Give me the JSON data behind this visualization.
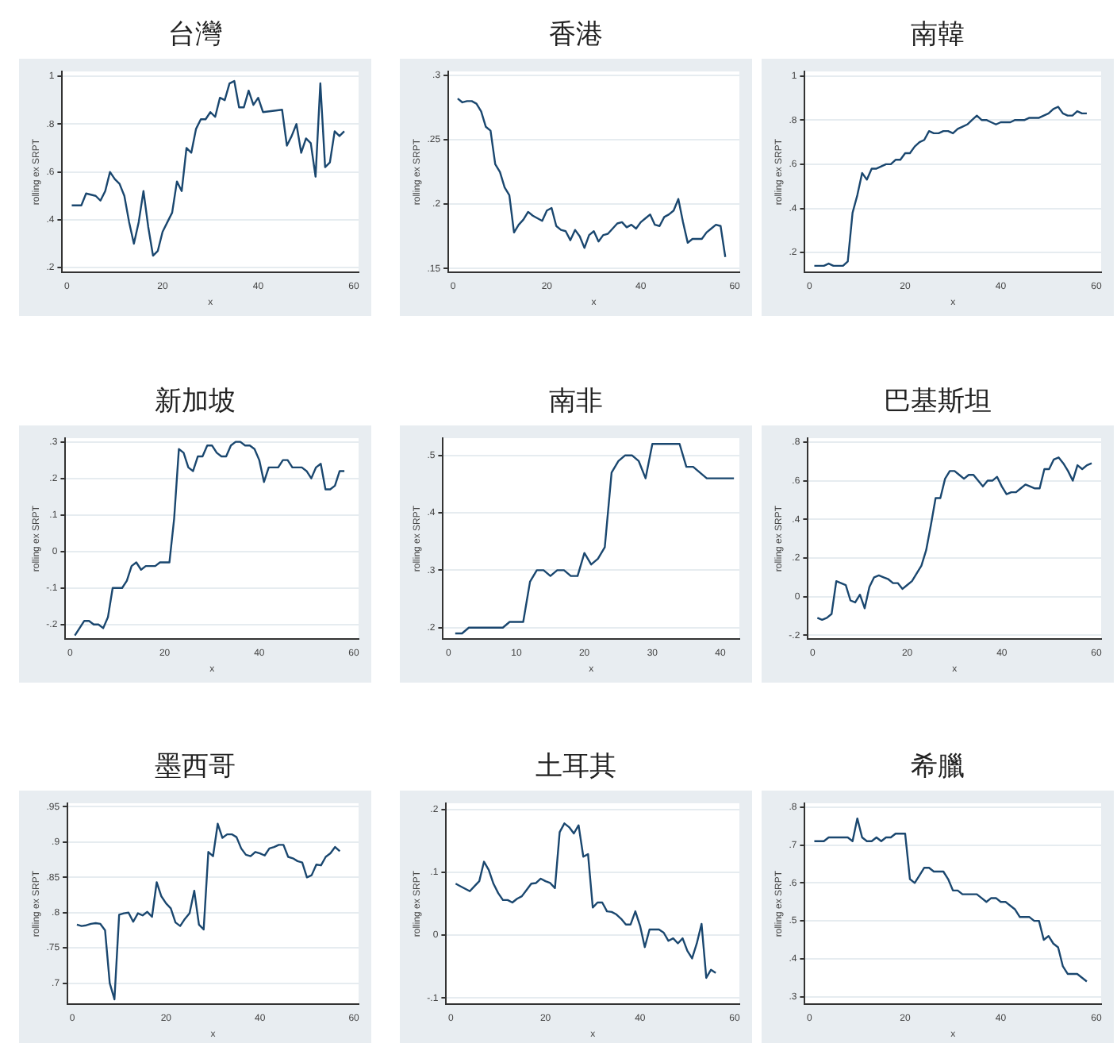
{
  "chart_data": [
    {
      "type": "line",
      "title": "台灣",
      "xlabel": "x",
      "ylabel": "rolling ex SRPT",
      "grid": "y",
      "xlim": [
        -1,
        61
      ],
      "xticks": [
        0,
        20,
        40,
        60
      ],
      "ylim": [
        0.18,
        1.02
      ],
      "yticks": [
        {
          "value": 0.2,
          "label": ".2"
        },
        {
          "value": 0.4,
          "label": ".4"
        },
        {
          "value": 0.6,
          "label": ".6"
        },
        {
          "value": 0.8,
          "label": ".8"
        },
        {
          "value": 1,
          "label": "1"
        }
      ],
      "x": [
        1,
        2,
        3,
        4,
        6,
        7,
        8,
        9,
        10,
        11,
        12,
        13,
        14,
        15,
        16,
        17,
        18,
        19,
        20,
        21,
        22,
        23,
        24,
        25,
        26,
        27,
        28,
        29,
        30,
        31,
        32,
        33,
        34,
        35,
        36,
        37,
        38,
        39,
        40,
        41,
        45,
        46,
        47,
        48,
        49,
        50,
        51,
        52,
        53,
        54,
        55,
        56,
        57,
        58
      ],
      "series": [
        {
          "color": "#1a476f",
          "values": [
            0.46,
            0.46,
            0.46,
            0.51,
            0.5,
            0.48,
            0.52,
            0.6,
            0.57,
            0.55,
            0.5,
            0.39,
            0.3,
            0.39,
            0.52,
            0.37,
            0.25,
            0.27,
            0.35,
            0.39,
            0.43,
            0.56,
            0.52,
            0.7,
            0.68,
            0.78,
            0.82,
            0.82,
            0.85,
            0.83,
            0.91,
            0.9,
            0.97,
            0.98,
            0.87,
            0.87,
            0.94,
            0.88,
            0.91,
            0.85,
            0.86,
            0.71,
            0.75,
            0.8,
            0.68,
            0.74,
            0.72,
            0.58,
            0.97,
            0.62,
            0.64,
            0.77,
            0.75,
            0.77
          ]
        }
      ]
    },
    {
      "type": "line",
      "title": "香港",
      "xlabel": "x",
      "ylabel": "rolling ex SRPT",
      "grid": "y",
      "xlim": [
        -1,
        61
      ],
      "xticks": [
        0,
        20,
        40,
        60
      ],
      "ylim": [
        0.147,
        0.303
      ],
      "yticks": [
        {
          "value": 0.15,
          "label": ".15"
        },
        {
          "value": 0.2,
          "label": ".2"
        },
        {
          "value": 0.25,
          "label": ".25"
        },
        {
          "value": 0.3,
          "label": ".3"
        }
      ],
      "x": [
        1,
        2,
        3,
        4,
        5,
        6,
        7,
        8,
        9,
        10,
        11,
        12,
        13,
        14,
        15,
        16,
        17,
        18,
        19,
        20,
        21,
        22,
        23,
        24,
        25,
        26,
        27,
        28,
        29,
        30,
        31,
        32,
        33,
        34,
        35,
        36,
        37,
        38,
        39,
        40,
        41,
        42,
        43,
        44,
        45,
        46,
        47,
        48,
        49,
        50,
        51,
        53,
        54,
        55,
        56,
        57,
        58
      ],
      "series": [
        {
          "color": "#1a476f",
          "values": [
            0.282,
            0.279,
            0.28,
            0.28,
            0.278,
            0.272,
            0.26,
            0.257,
            0.231,
            0.225,
            0.213,
            0.207,
            0.178,
            0.184,
            0.188,
            0.194,
            0.191,
            0.189,
            0.187,
            0.195,
            0.197,
            0.183,
            0.18,
            0.179,
            0.172,
            0.18,
            0.175,
            0.166,
            0.176,
            0.179,
            0.171,
            0.176,
            0.177,
            0.181,
            0.185,
            0.186,
            0.182,
            0.184,
            0.181,
            0.186,
            0.189,
            0.192,
            0.184,
            0.183,
            0.19,
            0.192,
            0.195,
            0.204,
            0.186,
            0.17,
            0.173,
            0.173,
            0.178,
            0.181,
            0.184,
            0.183,
            0.159
          ]
        }
      ]
    },
    {
      "type": "line",
      "title": "南韓",
      "xlabel": "x",
      "ylabel": "rolling ex SRPT",
      "grid": "y",
      "xlim": [
        -1,
        61
      ],
      "xticks": [
        0,
        20,
        40,
        60
      ],
      "ylim": [
        0.11,
        1.02
      ],
      "yticks": [
        {
          "value": 0.2,
          "label": ".2"
        },
        {
          "value": 0.4,
          "label": ".4"
        },
        {
          "value": 0.6,
          "label": ".6"
        },
        {
          "value": 0.8,
          "label": ".8"
        },
        {
          "value": 1,
          "label": "1"
        }
      ],
      "x": [
        1,
        2,
        3,
        4,
        5,
        6,
        7,
        8,
        9,
        10,
        11,
        12,
        13,
        14,
        15,
        16,
        17,
        18,
        19,
        20,
        21,
        22,
        23,
        24,
        25,
        26,
        27,
        28,
        29,
        30,
        31,
        32,
        33,
        34,
        35,
        36,
        37,
        38,
        39,
        40,
        41,
        42,
        43,
        44,
        45,
        46,
        47,
        48,
        49,
        50,
        51,
        52,
        53,
        54,
        55,
        56,
        57,
        58
      ],
      "series": [
        {
          "color": "#1a476f",
          "values": [
            0.14,
            0.14,
            0.14,
            0.15,
            0.14,
            0.14,
            0.14,
            0.16,
            0.38,
            0.46,
            0.56,
            0.53,
            0.58,
            0.58,
            0.59,
            0.6,
            0.6,
            0.62,
            0.62,
            0.65,
            0.65,
            0.68,
            0.7,
            0.71,
            0.75,
            0.74,
            0.74,
            0.75,
            0.75,
            0.74,
            0.76,
            0.77,
            0.78,
            0.8,
            0.82,
            0.8,
            0.8,
            0.79,
            0.78,
            0.79,
            0.79,
            0.79,
            0.8,
            0.8,
            0.8,
            0.81,
            0.81,
            0.81,
            0.82,
            0.83,
            0.85,
            0.86,
            0.83,
            0.82,
            0.82,
            0.84,
            0.83,
            0.83
          ]
        }
      ]
    },
    {
      "type": "line",
      "title": "新加坡",
      "xlabel": "x",
      "ylabel": "rolling ex SRPT",
      "grid": "y",
      "xlim": [
        -1,
        61
      ],
      "xticks": [
        0,
        20,
        40,
        60
      ],
      "ylim": [
        -0.24,
        0.31
      ],
      "yticks": [
        {
          "value": -0.2,
          "label": "-.2"
        },
        {
          "value": -0.1,
          "label": "-.1"
        },
        {
          "value": 0,
          "label": "0"
        },
        {
          "value": 0.1,
          "label": ".1"
        },
        {
          "value": 0.2,
          "label": ".2"
        },
        {
          "value": 0.3,
          "label": ".3"
        }
      ],
      "x": [
        1,
        2,
        3,
        4,
        5,
        6,
        7,
        8,
        9,
        10,
        11,
        12,
        13,
        14,
        15,
        16,
        17,
        18,
        19,
        20,
        21,
        22,
        23,
        24,
        25,
        26,
        27,
        28,
        29,
        30,
        31,
        32,
        33,
        34,
        35,
        36,
        37,
        38,
        39,
        40,
        41,
        42,
        43,
        44,
        45,
        46,
        47,
        48,
        49,
        50,
        51,
        52,
        53,
        54,
        55,
        56,
        57,
        58
      ],
      "series": [
        {
          "color": "#1a476f",
          "values": [
            -0.23,
            -0.21,
            -0.19,
            -0.19,
            -0.2,
            -0.2,
            -0.21,
            -0.18,
            -0.1,
            -0.1,
            -0.1,
            -0.08,
            -0.04,
            -0.03,
            -0.05,
            -0.04,
            -0.04,
            -0.04,
            -0.03,
            -0.03,
            -0.03,
            0.09,
            0.28,
            0.27,
            0.23,
            0.22,
            0.26,
            0.26,
            0.29,
            0.29,
            0.27,
            0.26,
            0.26,
            0.29,
            0.3,
            0.3,
            0.29,
            0.29,
            0.28,
            0.25,
            0.19,
            0.23,
            0.23,
            0.23,
            0.25,
            0.25,
            0.23,
            0.23,
            0.23,
            0.22,
            0.2,
            0.23,
            0.24,
            0.17,
            0.17,
            0.18,
            0.22,
            0.22
          ]
        }
      ]
    },
    {
      "type": "line",
      "title": "南非",
      "xlabel": "x",
      "ylabel": "rolling ex SRPT",
      "grid": "y",
      "xlim": [
        -0.8,
        42.8
      ],
      "xticks": [
        0,
        10,
        20,
        30,
        40
      ],
      "ylim": [
        0.18,
        0.53
      ],
      "yticks": [
        {
          "value": 0.2,
          "label": ".2"
        },
        {
          "value": 0.3,
          "label": ".3"
        },
        {
          "value": 0.4,
          "label": ".4"
        },
        {
          "value": 0.5,
          "label": ".5"
        }
      ],
      "x": [
        1,
        2,
        3,
        4,
        5,
        6,
        7,
        8,
        9,
        10,
        11,
        12,
        13,
        14,
        15,
        16,
        17,
        18,
        19,
        20,
        21,
        22,
        23,
        24,
        25,
        26,
        27,
        28,
        29,
        30,
        31,
        32,
        33,
        34,
        35,
        36,
        37,
        38,
        39,
        40,
        41,
        42
      ],
      "series": [
        {
          "color": "#1a476f",
          "values": [
            0.19,
            0.19,
            0.2,
            0.2,
            0.2,
            0.2,
            0.2,
            0.2,
            0.21,
            0.21,
            0.21,
            0.28,
            0.3,
            0.3,
            0.29,
            0.3,
            0.3,
            0.29,
            0.29,
            0.33,
            0.31,
            0.32,
            0.34,
            0.47,
            0.49,
            0.5,
            0.5,
            0.49,
            0.46,
            0.52,
            0.52,
            0.52,
            0.52,
            0.52,
            0.48,
            0.48,
            0.47,
            0.46,
            0.46,
            0.46,
            0.46,
            0.46
          ]
        }
      ]
    },
    {
      "type": "line",
      "title": "巴基斯坦",
      "xlabel": "x",
      "ylabel": "rolling ex SRPT",
      "grid": "y",
      "xlim": [
        -1,
        61
      ],
      "xticks": [
        0,
        20,
        40,
        60
      ],
      "ylim": [
        -0.22,
        0.82
      ],
      "yticks": [
        {
          "value": -0.2,
          "label": "-.2"
        },
        {
          "value": 0,
          "label": "0"
        },
        {
          "value": 0.2,
          "label": ".2"
        },
        {
          "value": 0.4,
          "label": ".4"
        },
        {
          "value": 0.6,
          "label": ".6"
        },
        {
          "value": 0.8,
          "label": ".8"
        }
      ],
      "x": [
        1,
        2,
        3,
        4,
        5,
        6,
        7,
        8,
        9,
        10,
        11,
        12,
        13,
        14,
        15,
        16,
        17,
        18,
        19,
        20,
        21,
        22,
        23,
        24,
        25,
        26,
        27,
        28,
        29,
        30,
        31,
        32,
        33,
        34,
        35,
        36,
        37,
        38,
        39,
        40,
        41,
        42,
        43,
        44,
        45,
        46,
        47,
        48,
        49,
        50,
        51,
        52,
        53,
        54,
        55,
        56,
        57,
        58,
        59
      ],
      "series": [
        {
          "color": "#1a476f",
          "values": [
            -0.11,
            -0.12,
            -0.11,
            -0.09,
            0.08,
            0.07,
            0.06,
            -0.02,
            -0.03,
            0.01,
            -0.06,
            0.05,
            0.1,
            0.11,
            0.1,
            0.09,
            0.07,
            0.07,
            0.04,
            0.06,
            0.08,
            0.12,
            0.16,
            0.24,
            0.37,
            0.51,
            0.51,
            0.61,
            0.65,
            0.65,
            0.63,
            0.61,
            0.63,
            0.63,
            0.6,
            0.57,
            0.6,
            0.6,
            0.62,
            0.57,
            0.53,
            0.54,
            0.54,
            0.56,
            0.58,
            0.57,
            0.56,
            0.56,
            0.66,
            0.66,
            0.71,
            0.72,
            0.69,
            0.65,
            0.6,
            0.68,
            0.66,
            0.68,
            0.69
          ]
        }
      ]
    },
    {
      "type": "line",
      "title": "墨西哥",
      "xlabel": "x",
      "ylabel": "rolling ex SRPT",
      "grid": "y",
      "xlim": [
        -1,
        61
      ],
      "xticks": [
        0,
        20,
        40,
        60
      ],
      "ylim": [
        0.67,
        0.955
      ],
      "yticks": [
        {
          "value": 0.7,
          "label": ".7"
        },
        {
          "value": 0.75,
          "label": ".75"
        },
        {
          "value": 0.8,
          "label": ".8"
        },
        {
          "value": 0.85,
          "label": ".85"
        },
        {
          "value": 0.9,
          "label": ".9"
        },
        {
          "value": 0.95,
          "label": ".95"
        }
      ],
      "x": [
        1,
        2,
        3,
        4,
        5,
        6,
        7,
        8,
        9,
        10,
        11,
        12,
        13,
        14,
        15,
        16,
        17,
        18,
        19,
        20,
        21,
        22,
        23,
        24,
        25,
        26,
        27,
        28,
        29,
        30,
        31,
        32,
        33,
        34,
        35,
        36,
        37,
        38,
        39,
        40,
        41,
        42,
        43,
        44,
        45,
        46,
        47,
        48,
        49,
        50,
        51,
        52,
        53,
        54,
        55,
        56,
        57
      ],
      "series": [
        {
          "color": "#1a476f",
          "values": [
            0.783,
            0.781,
            0.782,
            0.784,
            0.785,
            0.784,
            0.775,
            0.7,
            0.677,
            0.797,
            0.799,
            0.8,
            0.787,
            0.799,
            0.796,
            0.801,
            0.794,
            0.843,
            0.823,
            0.813,
            0.806,
            0.786,
            0.781,
            0.791,
            0.799,
            0.831,
            0.783,
            0.776,
            0.886,
            0.88,
            0.926,
            0.906,
            0.911,
            0.911,
            0.907,
            0.891,
            0.882,
            0.88,
            0.886,
            0.884,
            0.881,
            0.891,
            0.893,
            0.896,
            0.896,
            0.879,
            0.877,
            0.873,
            0.871,
            0.85,
            0.853,
            0.868,
            0.867,
            0.879,
            0.884,
            0.893,
            0.887
          ]
        }
      ]
    },
    {
      "type": "line",
      "title": "土耳其",
      "xlabel": "x",
      "ylabel": "rolling ex SRPT",
      "grid": "y",
      "xlim": [
        -1,
        61
      ],
      "xticks": [
        0,
        20,
        40,
        60
      ],
      "ylim": [
        -0.11,
        0.21
      ],
      "yticks": [
        {
          "value": -0.1,
          "label": "-.1"
        },
        {
          "value": 0,
          "label": "0"
        },
        {
          "value": 0.1,
          "label": ".1"
        },
        {
          "value": 0.2,
          "label": ".2"
        }
      ],
      "x": [
        1,
        2,
        4,
        5,
        6,
        7,
        8,
        9,
        10,
        11,
        12,
        13,
        14,
        15,
        16,
        17,
        18,
        19,
        20,
        21,
        22,
        23,
        24,
        25,
        26,
        27,
        28,
        29,
        30,
        31,
        32,
        33,
        34,
        35,
        36,
        37,
        38,
        39,
        40,
        41,
        42,
        44,
        45,
        46,
        47,
        48,
        49,
        50,
        51,
        52,
        53,
        54,
        55,
        56
      ],
      "series": [
        {
          "color": "#1a476f",
          "values": [
            0.082,
            0.078,
            0.07,
            0.078,
            0.086,
            0.117,
            0.104,
            0.082,
            0.067,
            0.056,
            0.056,
            0.052,
            0.058,
            0.062,
            0.072,
            0.082,
            0.083,
            0.09,
            0.086,
            0.083,
            0.075,
            0.164,
            0.178,
            0.172,
            0.162,
            0.175,
            0.125,
            0.129,
            0.044,
            0.052,
            0.052,
            0.038,
            0.037,
            0.033,
            0.026,
            0.017,
            0.017,
            0.038,
            0.015,
            -0.019,
            0.009,
            0.009,
            0.004,
            -0.009,
            -0.005,
            -0.013,
            -0.005,
            -0.025,
            -0.037,
            -0.013,
            0.018,
            -0.068,
            -0.055,
            -0.06
          ]
        }
      ]
    },
    {
      "type": "line",
      "title": "希臘",
      "xlabel": "x",
      "ylabel": "rolling ex SRPT",
      "grid": "y",
      "xlim": [
        -1,
        61
      ],
      "xticks": [
        0,
        20,
        40,
        60
      ],
      "ylim": [
        0.28,
        0.81
      ],
      "yticks": [
        {
          "value": 0.3,
          "label": ".3"
        },
        {
          "value": 0.4,
          "label": ".4"
        },
        {
          "value": 0.5,
          "label": ".5"
        },
        {
          "value": 0.6,
          "label": ".6"
        },
        {
          "value": 0.7,
          "label": ".7"
        },
        {
          "value": 0.8,
          "label": ".8"
        }
      ],
      "x": [
        1,
        2,
        3,
        4,
        5,
        6,
        7,
        8,
        9,
        10,
        11,
        12,
        13,
        14,
        15,
        16,
        17,
        18,
        19,
        20,
        21,
        22,
        23,
        24,
        25,
        26,
        27,
        28,
        29,
        30,
        31,
        32,
        33,
        34,
        35,
        36,
        37,
        38,
        39,
        40,
        41,
        42,
        43,
        44,
        45,
        46,
        47,
        48,
        49,
        50,
        51,
        52,
        53,
        54,
        55,
        56,
        57,
        58
      ],
      "series": [
        {
          "color": "#1a476f",
          "values": [
            0.71,
            0.71,
            0.71,
            0.72,
            0.72,
            0.72,
            0.72,
            0.72,
            0.71,
            0.77,
            0.72,
            0.71,
            0.71,
            0.72,
            0.71,
            0.72,
            0.72,
            0.73,
            0.73,
            0.73,
            0.61,
            0.6,
            0.62,
            0.64,
            0.64,
            0.63,
            0.63,
            0.63,
            0.61,
            0.58,
            0.58,
            0.57,
            0.57,
            0.57,
            0.57,
            0.56,
            0.55,
            0.56,
            0.56,
            0.55,
            0.55,
            0.54,
            0.53,
            0.51,
            0.51,
            0.51,
            0.5,
            0.5,
            0.45,
            0.46,
            0.44,
            0.43,
            0.38,
            0.36,
            0.36,
            0.36,
            0.35,
            0.34
          ]
        }
      ]
    }
  ]
}
